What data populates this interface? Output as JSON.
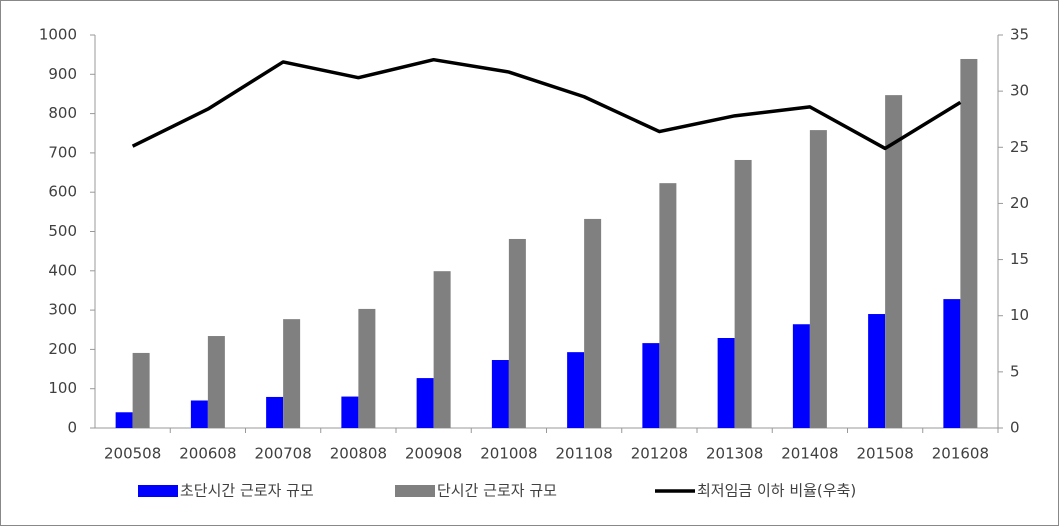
{
  "chart_data": {
    "type": "bar-line",
    "categories": [
      "200508",
      "200608",
      "200708",
      "200808",
      "200908",
      "201008",
      "201108",
      "201208",
      "201308",
      "201408",
      "201508",
      "201608"
    ],
    "series": [
      {
        "name": "초단시간 근로자 규모",
        "type": "bar",
        "color": "#0000ff",
        "values": [
          40,
          70,
          79,
          80,
          127,
          173,
          193,
          216,
          229,
          264,
          290,
          328
        ]
      },
      {
        "name": "단시간 근로자 규모",
        "type": "bar",
        "color": "#808080",
        "values": [
          191,
          234,
          277,
          303,
          399,
          481,
          532,
          623,
          682,
          758,
          847,
          939
        ]
      },
      {
        "name": "최저임금 이하 비율(우축)",
        "type": "line",
        "axis": "y2",
        "color": "#000000",
        "values": [
          25.1,
          28.4,
          32.6,
          31.2,
          32.8,
          31.7,
          29.5,
          26.4,
          27.8,
          28.6,
          24.9,
          29.0
        ]
      }
    ],
    "ylim": [
      0,
      1000
    ],
    "yticks": [
      0,
      100,
      200,
      300,
      400,
      500,
      600,
      700,
      800,
      900,
      1000
    ],
    "y2lim": [
      0,
      35
    ],
    "y2ticks": [
      0,
      5,
      10,
      15,
      20,
      25,
      30,
      35
    ],
    "grid": false,
    "legend": "bottom"
  }
}
